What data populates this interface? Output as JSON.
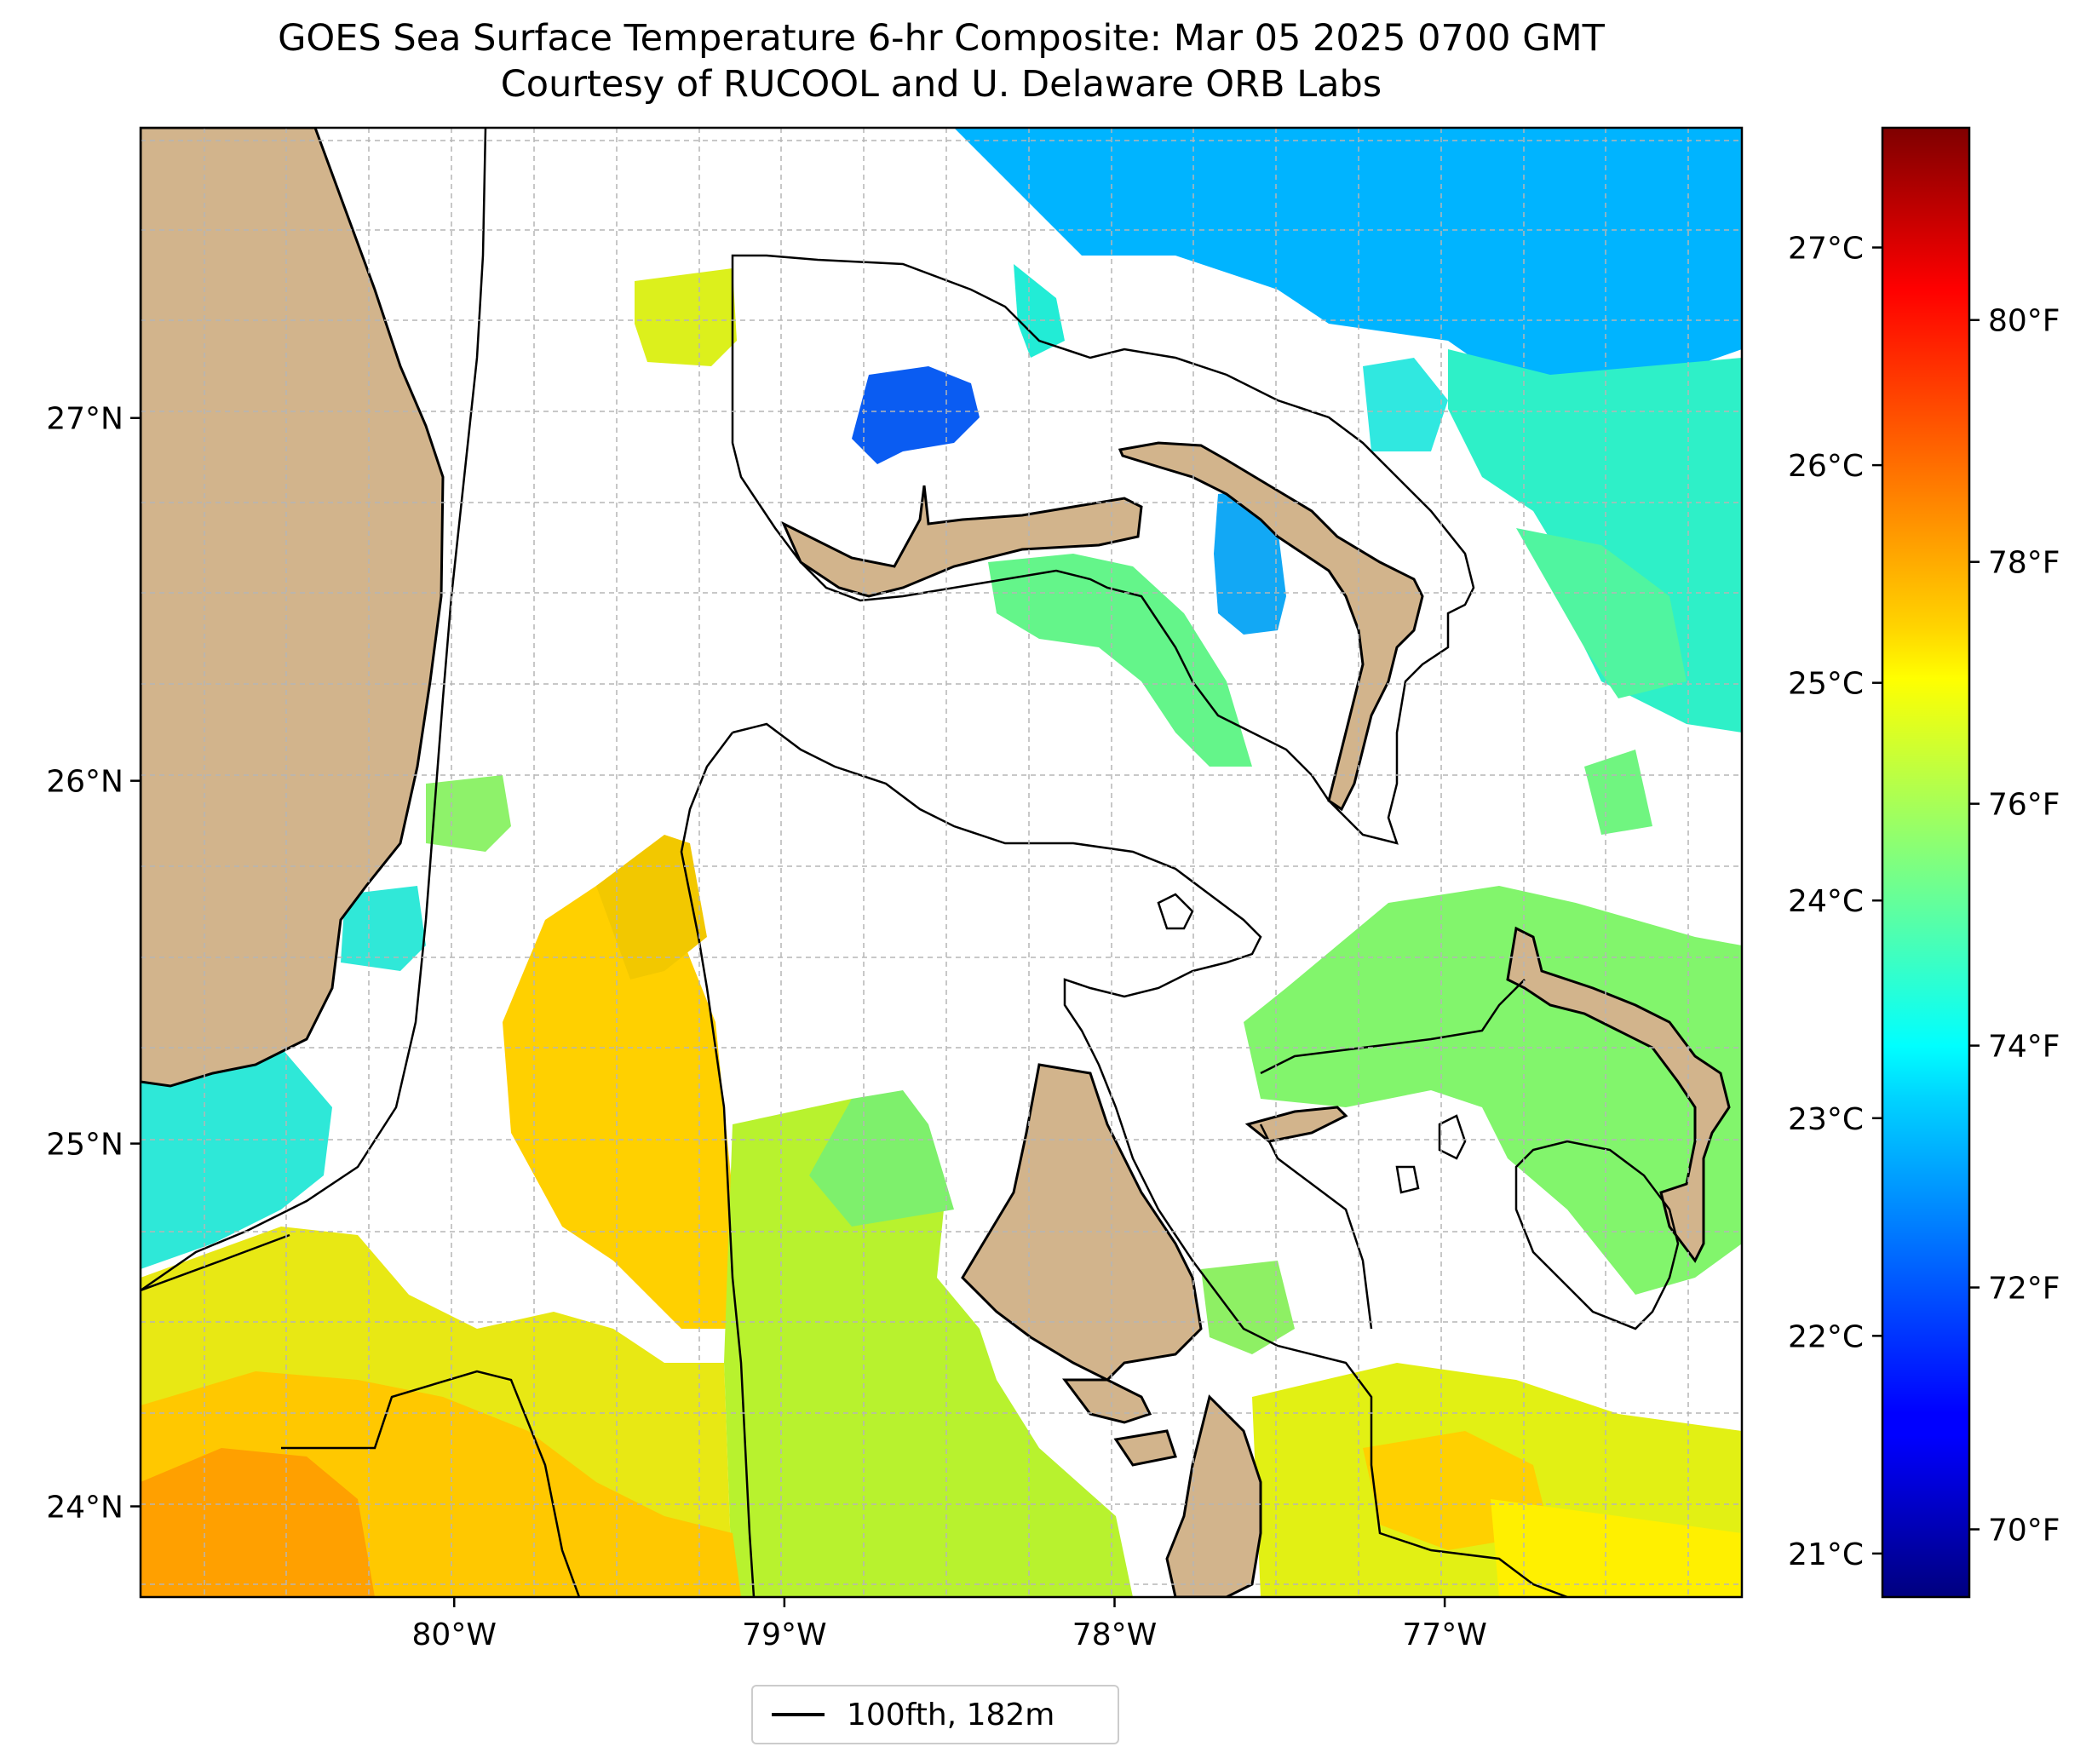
{
  "title": {
    "line1": "GOES Sea Surface Temperature 6-hr Composite: Mar 05 2025 0700 GMT",
    "line2": "Courtesy of RUCOOL and U. Delaware ORB Labs"
  },
  "map": {
    "lon_range": [
      -80.95,
      -76.1
    ],
    "lat_range": [
      23.75,
      27.8
    ],
    "lon_ticks": [
      {
        "value": -80,
        "label": "80°W"
      },
      {
        "value": -79,
        "label": "79°W"
      },
      {
        "value": -78,
        "label": "78°W"
      },
      {
        "value": -77,
        "label": "77°W"
      }
    ],
    "lat_ticks": [
      {
        "value": 24,
        "label": "24°N"
      },
      {
        "value": 25,
        "label": "25°N"
      },
      {
        "value": 26,
        "label": "26°N"
      },
      {
        "value": 27,
        "label": "27°N"
      }
    ],
    "grid": "dashed light gray",
    "land_color": "#d2b48c",
    "no_data_color": "#ffffff"
  },
  "colorbar": {
    "colormap": "jet",
    "celsius_ticks": [
      {
        "value": 21,
        "label": "21°C"
      },
      {
        "value": 22,
        "label": "22°C"
      },
      {
        "value": 23,
        "label": "23°C"
      },
      {
        "value": 24,
        "label": "24°C"
      },
      {
        "value": 25,
        "label": "25°C"
      },
      {
        "value": 26,
        "label": "26°C"
      },
      {
        "value": 27,
        "label": "27°C"
      }
    ],
    "fahrenheit_ticks": [
      {
        "value": 70,
        "label": "70°F"
      },
      {
        "value": 72,
        "label": "72°F"
      },
      {
        "value": 74,
        "label": "74°F"
      },
      {
        "value": 76,
        "label": "76°F"
      },
      {
        "value": 78,
        "label": "78°F"
      },
      {
        "value": 80,
        "label": "80°F"
      }
    ],
    "range_c": [
      20.8,
      27.55
    ]
  },
  "legend": {
    "label": "100fth, 182m",
    "line_color": "#000000"
  }
}
